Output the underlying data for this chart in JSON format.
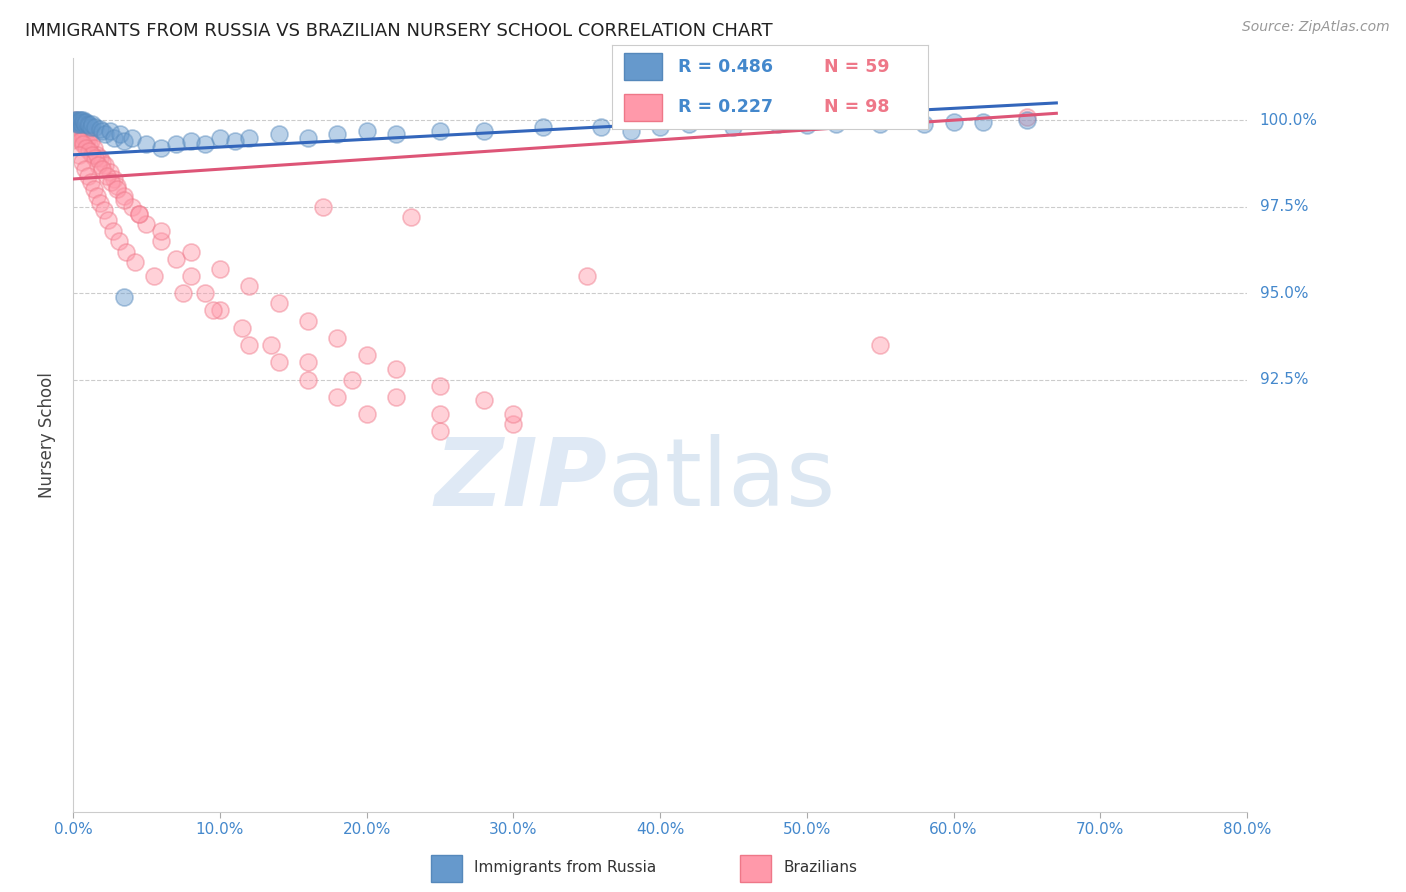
{
  "title": "IMMIGRANTS FROM RUSSIA VS BRAZILIAN NURSERY SCHOOL CORRELATION CHART",
  "source": "Source: ZipAtlas.com",
  "ylabel": "Nursery School",
  "x_min": 0.0,
  "x_max": 80.0,
  "y_min": 80.0,
  "y_max": 101.8,
  "ytick_vals": [
    92.5,
    95.0,
    97.5,
    100.0
  ],
  "ytick_labels": [
    "92.5%",
    "95.0%",
    "97.5%",
    "100.0%"
  ],
  "xtick_vals": [
    0.0,
    10.0,
    20.0,
    30.0,
    40.0,
    50.0,
    60.0,
    70.0,
    80.0
  ],
  "xtick_labels": [
    "0.0%",
    "10.0%",
    "20.0%",
    "30.0%",
    "40.0%",
    "50.0%",
    "60.0%",
    "70.0%",
    "80.0%"
  ],
  "blue_color": "#6699CC",
  "blue_edge": "#5588BB",
  "pink_color": "#FF99AA",
  "pink_edge": "#EE7788",
  "line_blue": "#3366BB",
  "line_pink": "#DD5577",
  "blue_label": "Immigrants from Russia",
  "pink_label": "Brazilians",
  "legend_blue_R": "0.486",
  "legend_blue_N": "59",
  "legend_pink_R": "0.227",
  "legend_pink_N": "98",
  "legend_text_color": "#4488CC",
  "legend_pink_text_color": "#EE7788",
  "title_color": "#222222",
  "axis_tick_color": "#4488CC",
  "grid_color": "#CCCCCC",
  "ylabel_color": "#444444",
  "source_color": "#999999",
  "background_color": "#FFFFFF",
  "blue_scatter_x": [
    0.1,
    0.15,
    0.2,
    0.25,
    0.3,
    0.35,
    0.4,
    0.45,
    0.5,
    0.55,
    0.6,
    0.65,
    0.7,
    0.75,
    0.8,
    0.9,
    1.0,
    1.1,
    1.2,
    1.3,
    1.5,
    1.8,
    2.0,
    2.2,
    2.5,
    2.8,
    3.2,
    3.5,
    4.0,
    5.0,
    6.0,
    7.0,
    8.0,
    9.0,
    10.0,
    11.0,
    12.0,
    14.0,
    16.0,
    18.0,
    20.0,
    22.0,
    25.0,
    28.0,
    32.0,
    36.0,
    38.0,
    40.0,
    42.0,
    45.0,
    48.0,
    50.0,
    52.0,
    55.0,
    58.0,
    60.0,
    62.0,
    3.5,
    65.0
  ],
  "blue_scatter_y": [
    100.0,
    99.95,
    100.0,
    99.9,
    100.0,
    99.95,
    99.9,
    100.0,
    99.95,
    100.0,
    99.9,
    99.95,
    100.0,
    99.95,
    99.9,
    99.95,
    99.9,
    99.85,
    99.8,
    99.9,
    99.8,
    99.75,
    99.7,
    99.6,
    99.7,
    99.5,
    99.6,
    99.4,
    99.5,
    99.3,
    99.2,
    99.3,
    99.4,
    99.3,
    99.5,
    99.4,
    99.5,
    99.6,
    99.5,
    99.6,
    99.7,
    99.6,
    99.7,
    99.7,
    99.8,
    99.8,
    99.7,
    99.8,
    99.9,
    99.8,
    99.9,
    99.85,
    99.9,
    99.9,
    99.9,
    99.95,
    99.95,
    94.9,
    100.0
  ],
  "pink_scatter_x": [
    0.1,
    0.15,
    0.2,
    0.25,
    0.3,
    0.35,
    0.4,
    0.45,
    0.5,
    0.55,
    0.6,
    0.65,
    0.7,
    0.75,
    0.8,
    0.9,
    1.0,
    1.1,
    1.2,
    1.4,
    1.6,
    1.8,
    2.0,
    2.2,
    2.5,
    2.8,
    3.0,
    3.5,
    4.0,
    4.5,
    5.0,
    6.0,
    7.0,
    8.0,
    9.0,
    10.0,
    12.0,
    14.0,
    16.0,
    18.0,
    20.0,
    25.0,
    30.0,
    0.3,
    0.5,
    0.7,
    0.9,
    1.1,
    1.3,
    1.5,
    1.7,
    2.0,
    2.3,
    2.6,
    3.0,
    3.5,
    4.5,
    6.0,
    8.0,
    10.0,
    12.0,
    14.0,
    16.0,
    18.0,
    20.0,
    22.0,
    25.0,
    28.0,
    30.0,
    0.4,
    0.6,
    0.8,
    1.0,
    1.2,
    1.4,
    1.6,
    1.8,
    2.1,
    2.4,
    2.7,
    3.1,
    3.6,
    4.2,
    5.5,
    7.5,
    9.5,
    11.5,
    13.5,
    16.0,
    19.0,
    22.0,
    25.0,
    65.0,
    17.0,
    23.0,
    35.0,
    55.0
  ],
  "pink_scatter_y": [
    100.0,
    99.8,
    99.9,
    99.7,
    99.8,
    99.6,
    99.9,
    99.5,
    99.7,
    99.6,
    99.8,
    99.4,
    99.6,
    99.5,
    99.7,
    99.4,
    99.5,
    99.3,
    99.4,
    99.2,
    99.0,
    98.9,
    98.8,
    98.7,
    98.5,
    98.3,
    98.1,
    97.8,
    97.5,
    97.3,
    97.0,
    96.5,
    96.0,
    95.5,
    95.0,
    94.5,
    93.5,
    93.0,
    92.5,
    92.0,
    91.5,
    91.0,
    91.2,
    99.5,
    99.4,
    99.3,
    99.2,
    99.1,
    99.0,
    98.9,
    98.7,
    98.6,
    98.4,
    98.2,
    98.0,
    97.7,
    97.3,
    96.8,
    96.2,
    95.7,
    95.2,
    94.7,
    94.2,
    93.7,
    93.2,
    92.8,
    92.3,
    91.9,
    91.5,
    99.0,
    98.8,
    98.6,
    98.4,
    98.2,
    98.0,
    97.8,
    97.6,
    97.4,
    97.1,
    96.8,
    96.5,
    96.2,
    95.9,
    95.5,
    95.0,
    94.5,
    94.0,
    93.5,
    93.0,
    92.5,
    92.0,
    91.5,
    100.1,
    97.5,
    97.2,
    95.5,
    93.5
  ],
  "blue_line_x0": 0.0,
  "blue_line_x1": 67.0,
  "blue_line_y0": 99.0,
  "blue_line_y1": 100.5,
  "pink_line_x0": 0.0,
  "pink_line_x1": 67.0,
  "pink_line_y0": 98.3,
  "pink_line_y1": 100.2
}
